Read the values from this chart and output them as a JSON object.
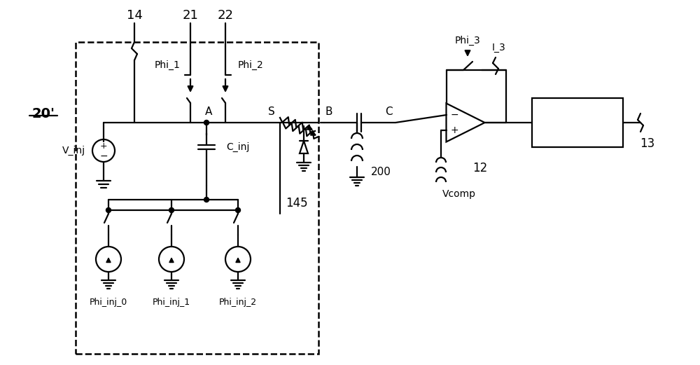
{
  "bg_color": "#ffffff",
  "lc": "#000000",
  "lw": 1.6,
  "labels": {
    "20prime": "20'",
    "14": "14",
    "21": "21",
    "22": "22",
    "phi1": "Phi_1",
    "phi2": "Phi_2",
    "phi3": "Phi_3",
    "I3": "I_3",
    "Vinj": "V_inj",
    "Cinj": "C_inj",
    "A": "A",
    "S": "S",
    "B": "B",
    "C": "C",
    "Vcomp": "Vcomp",
    "12": "12",
    "13": "13",
    "145": "145",
    "200": "200",
    "phi_inj0": "Phi_inj_0",
    "phi_inj1": "Phi_inj_1",
    "phi_inj2": "Phi_inj_2"
  }
}
